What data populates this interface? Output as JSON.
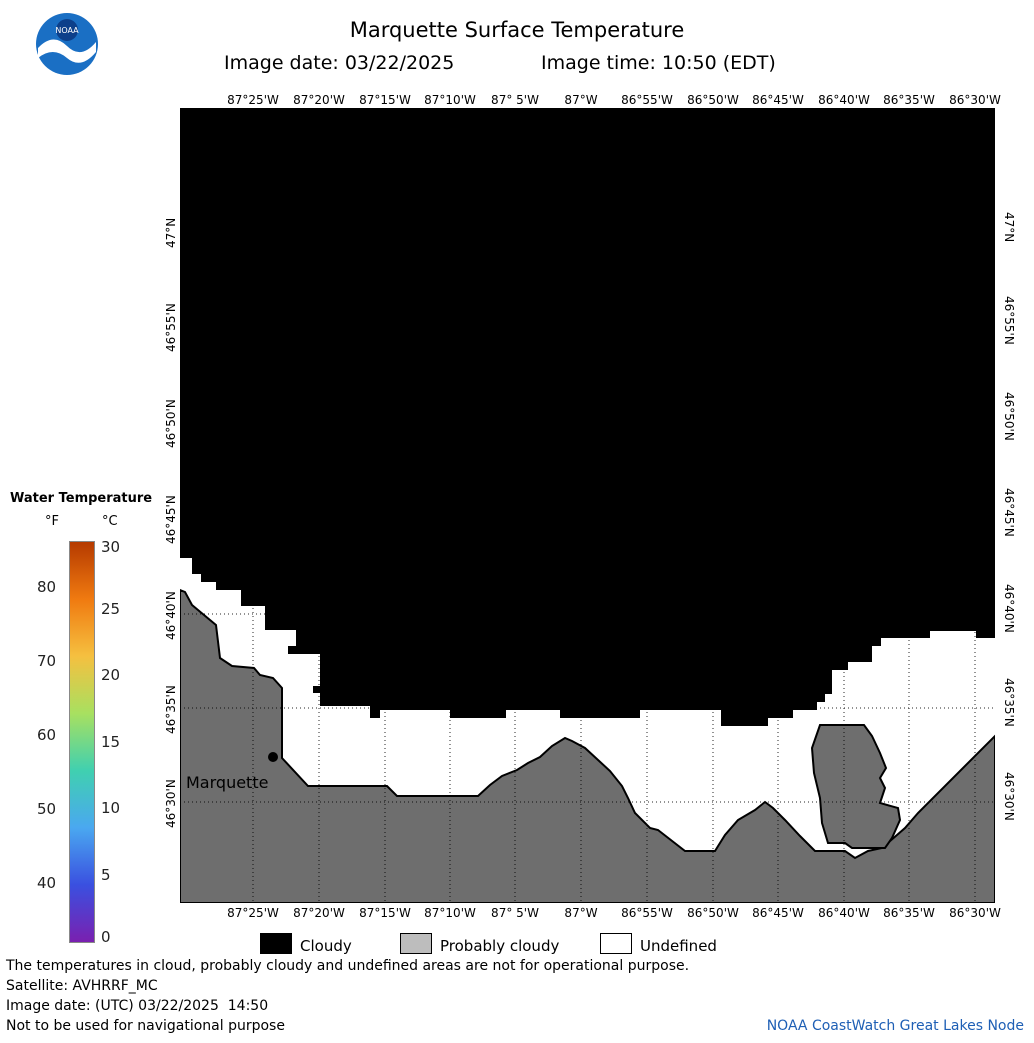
{
  "header": {
    "title": "Marquette Surface Temperature",
    "date_label": "Image date: 03/22/2025",
    "time_label": "Image time: 10:50 (EDT)"
  },
  "logo": {
    "name": "noaa-logo",
    "text": "NOAA"
  },
  "map": {
    "lon_ticks_top": [
      "87°25'W",
      "87°20'W",
      "87°15'W",
      "87°10'W",
      "87° 5'W",
      "87°W",
      "86°55'W",
      "86°50'W",
      "86°45'W",
      "86°40'W",
      "86°35'W",
      "86°30'W"
    ],
    "lon_ticks_bottom": [
      "87°25'W",
      "87°20'W",
      "87°15'W",
      "87°10'W",
      "87° 5'W",
      "87°W",
      "86°55'W",
      "86°50'W",
      "86°45'W",
      "86°40'W",
      "86°35'W",
      "86°30'W"
    ],
    "lat_ticks_left": [
      "47°N",
      "46°55'N",
      "46°50'N",
      "46°45'N",
      "46°40'N",
      "46°35'N",
      "46°30'N"
    ],
    "lat_ticks_right": [
      "47°N",
      "46°55'N",
      "46°50'N",
      "46°45'N",
      "46°40'N",
      "46°35'N",
      "46°30'N"
    ],
    "city_label": "Marquette",
    "colors": {
      "cloudy": "#000000",
      "land": "#6e6e6e",
      "undefined": "#ffffff"
    }
  },
  "color_scale": {
    "title": "Water Temperature",
    "unit_f": "°F",
    "unit_c": "°C",
    "fahrenheit_ticks": [
      "80",
      "70",
      "60",
      "50",
      "40"
    ],
    "celsius_ticks": [
      "30",
      "25",
      "20",
      "15",
      "10",
      "5",
      "0"
    ],
    "colors": [
      "#b53a00",
      "#f07a10",
      "#f5c040",
      "#a8e060",
      "#40d0b0",
      "#4aa8f0",
      "#3a50e0",
      "#7a20b0"
    ]
  },
  "key": {
    "cloudy": "Cloudy",
    "probably_cloudy": "Probably cloudy",
    "undefined": "Undefined"
  },
  "footer": {
    "warning": "The temperatures in cloud, probably cloudy and undefined areas are not for operational purpose.",
    "satellite": "Satellite: AVHRRF_MC",
    "utc_date": "Image date: (UTC) 03/22/2025  14:50",
    "nav_warning": "Not to be used for navigational purpose",
    "credit": "NOAA CoastWatch Great Lakes Node"
  }
}
